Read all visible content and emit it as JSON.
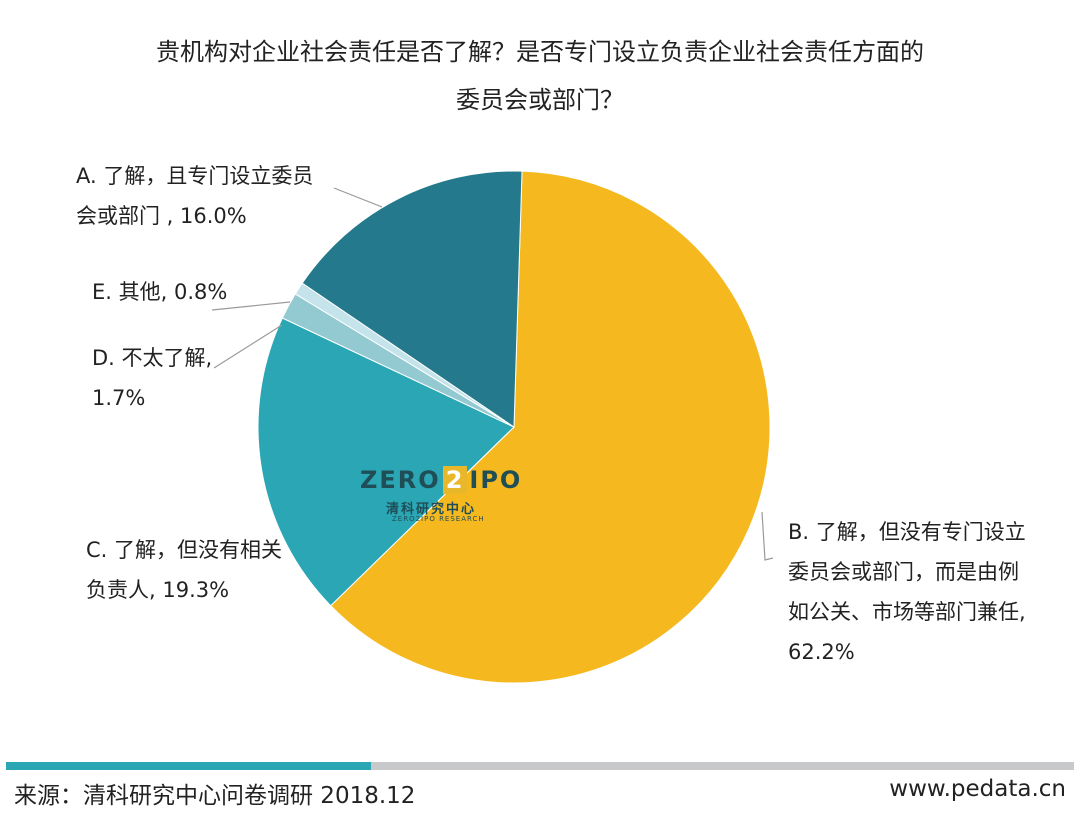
{
  "chart_data": {
    "type": "pie",
    "title_line1": "贵机构对企业社会责任是否了解？是否专门设立负责企业社会责任方面的",
    "title_line2": "委员会或部门？",
    "slices": [
      {
        "key": "A",
        "label_lines": [
          "A. 了解，且专门设立委员",
          "会或部门 , 16.0%"
        ],
        "value": 16.0,
        "color": "#247a8c"
      },
      {
        "key": "B",
        "label_lines": [
          "B. 了解，但没有专门设立",
          "委员会或部门，而是由例",
          "如公关、市场等部门兼任,",
          "62.2%"
        ],
        "value": 62.2,
        "color": "#f5b91f"
      },
      {
        "key": "C",
        "label_lines": [
          "C. 了解，但没有相关",
          "负责人, 19.3%"
        ],
        "value": 19.3,
        "color": "#2aa6b4"
      },
      {
        "key": "D",
        "label_lines": [
          "D. 不太了解,",
          "1.7%"
        ],
        "value": 1.7,
        "color": "#93c9d1"
      },
      {
        "key": "E",
        "label_lines": [
          "E. 其他, 0.8%"
        ],
        "value": 0.8,
        "color": "#c5e3ea"
      }
    ]
  },
  "watermark": {
    "brand_left": "ZERO",
    "brand_box": "2",
    "brand_right": "IPO",
    "cn": "清科研究中心",
    "sub": "ZERO2IPO RESEARCH"
  },
  "footer": {
    "source": "来源：清科研究中心问卷调研 2018.12",
    "url": "www.pedata.cn"
  }
}
